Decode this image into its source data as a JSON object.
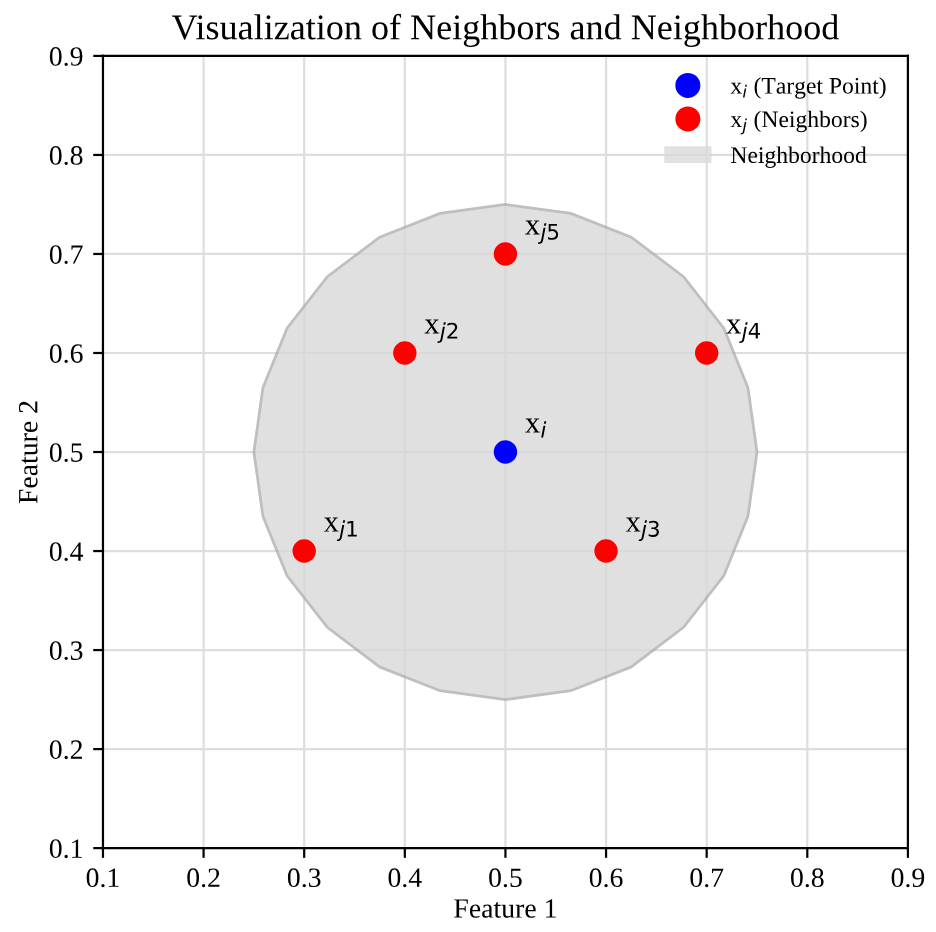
{
  "chart_data": {
    "type": "scatter",
    "title": "Visualization of Neighbors and Neighborhood",
    "xlabel": "Feature 1",
    "ylabel": "Feature 2",
    "series": [
      {
        "name": "x$_{i}$ (Target Point)",
        "color": "#0000ff",
        "marker": "circle",
        "x": [
          0.5
        ],
        "values": [
          0.5
        ]
      },
      {
        "name": "x$_{j}$ (Neighbors)",
        "color": "#ff0000",
        "marker": "circle",
        "x": [
          0.3,
          0.4,
          0.6,
          0.7,
          0.5
        ],
        "values": [
          0.4,
          0.6,
          0.4,
          0.6,
          0.7
        ]
      },
      {
        "name": "Neighborhood",
        "type": "area",
        "color": "#d9d9d9",
        "x": [
          0.75,
          0.741,
          0.717,
          0.677,
          0.625,
          0.565,
          0.5,
          0.435,
          0.375,
          0.323,
          0.283,
          0.259,
          0.25,
          0.259,
          0.283,
          0.323,
          0.375,
          0.435,
          0.5,
          0.565,
          0.625,
          0.677,
          0.717,
          0.741,
          0.75
        ],
        "values": [
          0.5,
          0.565,
          0.625,
          0.677,
          0.717,
          0.741,
          0.75,
          0.741,
          0.717,
          0.677,
          0.625,
          0.565,
          0.5,
          0.435,
          0.375,
          0.323,
          0.283,
          0.259,
          0.25,
          0.259,
          0.283,
          0.323,
          0.375,
          0.435,
          0.5
        ]
      }
    ],
    "annotations": [
      {
        "text": "x$_{i}$",
        "x": 0.5,
        "y": 0.5
      },
      {
        "text": "x$_{j1}$",
        "x": 0.3,
        "y": 0.4
      },
      {
        "text": "x$_{j2}$",
        "x": 0.4,
        "y": 0.6
      },
      {
        "text": "x$_{j3}$",
        "x": 0.6,
        "y": 0.4
      },
      {
        "text": "x$_{j4}$",
        "x": 0.7,
        "y": 0.6
      },
      {
        "text": "x$_{j5}$",
        "x": 0.5,
        "y": 0.7
      }
    ],
    "xlim": [
      0.1,
      0.9
    ],
    "ylim": [
      0.1,
      0.9
    ],
    "xticks": [
      0.1,
      0.2,
      0.3,
      0.4,
      0.5,
      0.6,
      0.7,
      0.8,
      0.9
    ],
    "yticks": [
      0.1,
      0.2,
      0.3,
      0.4,
      0.5,
      0.6,
      0.7,
      0.8,
      0.9
    ],
    "grid": true,
    "legend": "top right"
  }
}
